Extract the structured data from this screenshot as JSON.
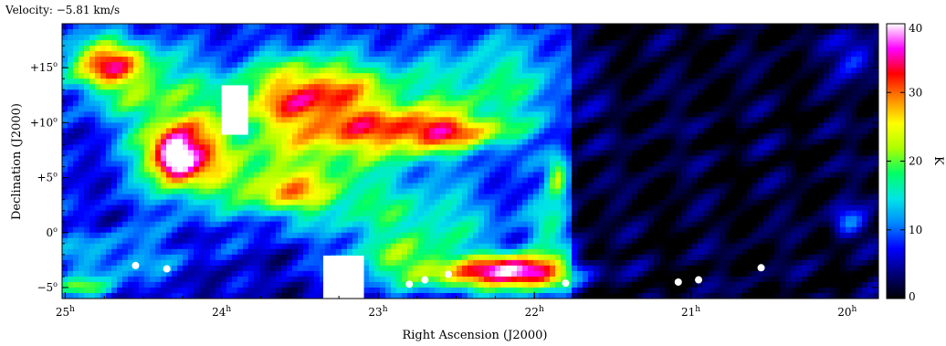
{
  "chart_data": {
    "type": "heatmap",
    "title": "Velocity: −5.81 km/s",
    "xlabel": "Right Ascension (J2000)",
    "ylabel": "Declination (J2000)",
    "x_ticks": [
      {
        "value": 25,
        "label": "25",
        "sup": "h"
      },
      {
        "value": 24,
        "label": "24",
        "sup": "h"
      },
      {
        "value": 23,
        "label": "23",
        "sup": "h"
      },
      {
        "value": 22,
        "label": "22",
        "sup": "h"
      },
      {
        "value": 21,
        "label": "21",
        "sup": "h"
      },
      {
        "value": 20,
        "label": "20",
        "sup": "h"
      }
    ],
    "y_ticks": [
      {
        "value": 15,
        "label": "+15",
        "sup": "o"
      },
      {
        "value": 10,
        "label": "+10",
        "sup": "o"
      },
      {
        "value": 5,
        "label": "+5",
        "sup": "o"
      },
      {
        "value": 0,
        "label": "0",
        "sup": "o"
      },
      {
        "value": -5,
        "label": "−5",
        "sup": "o"
      }
    ],
    "xlim": [
      25.02,
      19.8
    ],
    "ylim": [
      -6.0,
      19.0
    ],
    "colorbar": {
      "label": "K",
      "range": [
        0,
        40
      ],
      "ticks": [
        0,
        10,
        20,
        30,
        40
      ],
      "colors": [
        "#000000",
        "#00007a",
        "#0000ff",
        "#0088ff",
        "#00e5e5",
        "#00ff66",
        "#aaff00",
        "#ffff00",
        "#ff8800",
        "#ff0000",
        "#ff00ff",
        "#ffffff"
      ]
    },
    "masked_regions": [
      {
        "x": [
          24.0,
          23.83
        ],
        "y": [
          8.9,
          13.4
        ]
      },
      {
        "x": [
          23.35,
          23.09
        ],
        "y": [
          -6.0,
          -2.1
        ]
      }
    ],
    "point_markers": [
      {
        "x": 24.55,
        "y": -3.0
      },
      {
        "x": 24.35,
        "y": -3.3
      },
      {
        "x": 22.8,
        "y": -4.7
      },
      {
        "x": 22.7,
        "y": -4.3
      },
      {
        "x": 22.55,
        "y": -3.8
      },
      {
        "x": 21.8,
        "y": -4.6
      },
      {
        "x": 21.08,
        "y": -4.5
      },
      {
        "x": 20.95,
        "y": -4.3
      },
      {
        "x": 20.55,
        "y": -3.2
      }
    ],
    "emission_features": [
      {
        "x": 24.25,
        "y": 7.5,
        "sx": 0.2,
        "sy": 2.6,
        "v": 24,
        "rot": -0.5
      },
      {
        "x": 24.3,
        "y": 6.8,
        "sx": 0.08,
        "sy": 1.3,
        "v": 16,
        "rot": -0.5
      },
      {
        "x": 24.75,
        "y": 15.5,
        "sx": 0.18,
        "sy": 1.6,
        "v": 20,
        "rot": 0
      },
      {
        "x": 24.5,
        "y": 13.5,
        "sx": 0.28,
        "sy": 2.5,
        "v": 11,
        "rot": 0
      },
      {
        "x": 23.6,
        "y": 5.0,
        "sx": 0.45,
        "sy": 2.6,
        "v": 12,
        "rot": 0.2
      },
      {
        "x": 23.55,
        "y": 3.5,
        "sx": 0.22,
        "sy": 1.2,
        "v": 10,
        "rot": 0
      },
      {
        "x": 23.35,
        "y": 13.0,
        "sx": 0.3,
        "sy": 2.3,
        "v": 12,
        "rot": 0
      },
      {
        "x": 23.6,
        "y": 12.0,
        "sx": 0.28,
        "sy": 2.6,
        "v": 11,
        "rot": 0
      },
      {
        "x": 22.9,
        "y": 8.8,
        "sx": 0.45,
        "sy": 1.6,
        "v": 13,
        "rot": 0.3
      },
      {
        "x": 22.55,
        "y": 9.3,
        "sx": 0.25,
        "sy": 1.0,
        "v": 12,
        "rot": 0
      },
      {
        "x": 22.95,
        "y": 11.5,
        "sx": 0.5,
        "sy": 2.8,
        "v": 9,
        "rot": 0
      },
      {
        "x": 22.75,
        "y": 1.0,
        "sx": 0.4,
        "sy": 2.3,
        "v": 10,
        "rot": 0
      },
      {
        "x": 22.8,
        "y": -3.0,
        "sx": 0.3,
        "sy": 1.6,
        "v": 12,
        "rot": 0
      },
      {
        "x": 22.05,
        "y": -3.5,
        "sx": 0.22,
        "sy": 1.1,
        "v": 26,
        "rot": -0.6
      },
      {
        "x": 22.3,
        "y": -4.0,
        "sx": 0.28,
        "sy": 1.2,
        "v": 14,
        "rot": 0
      },
      {
        "x": 21.85,
        "y": 5.0,
        "sx": 0.05,
        "sy": 1.4,
        "v": 16,
        "rot": 0
      },
      {
        "x": 21.9,
        "y": 0.5,
        "sx": 0.1,
        "sy": 1.8,
        "v": 9,
        "rot": 0
      },
      {
        "x": 22.2,
        "y": 14.0,
        "sx": 0.3,
        "sy": 3.0,
        "v": 8,
        "rot": 0
      },
      {
        "x": 24.7,
        "y": -2.5,
        "sx": 0.35,
        "sy": 2.0,
        "v": 7,
        "rot": 0
      },
      {
        "x": 20.0,
        "y": 1.0,
        "sx": 0.08,
        "sy": 1.0,
        "v": 9,
        "rot": -0.7
      },
      {
        "x": 19.95,
        "y": 16.0,
        "sx": 0.1,
        "sy": 1.5,
        "v": 8,
        "rot": 0
      },
      {
        "x": 24.9,
        "y": -5.0,
        "sx": 0.15,
        "sy": 0.6,
        "v": 12,
        "rot": 0
      }
    ]
  }
}
